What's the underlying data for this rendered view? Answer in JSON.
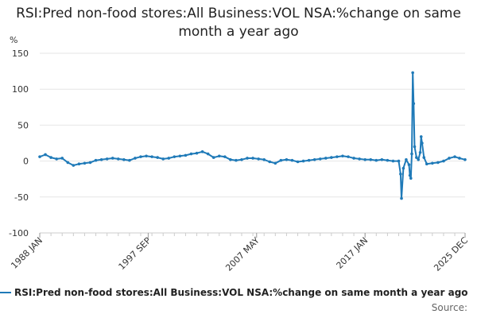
{
  "title": "RSI:Pred non-food stores:All Business:VOL NSA:%change on same month a year ago",
  "source_label": "Source:",
  "colors": {
    "series": "#1f7ab8",
    "grid": "#e6e6e6",
    "axis": "#cccccc"
  },
  "chart_data": {
    "type": "line",
    "title": "RSI:Pred non-food stores:All Business:VOL NSA:%change on same month a year ago",
    "ylabel": "%",
    "xlabel": "",
    "ylim": [
      -100,
      150
    ],
    "yticks": [
      150,
      100,
      50,
      0,
      -50,
      -100
    ],
    "xlim": [
      "1988-01",
      "2025-12"
    ],
    "xtick_labels": [
      {
        "x": "1988-01",
        "label": "1988 JAN"
      },
      {
        "x": "1997-09",
        "label": "1997 SEP"
      },
      {
        "x": "2007-05",
        "label": "2007 MAY"
      },
      {
        "x": "2017-01",
        "label": "2017 JAN"
      },
      {
        "x": "2025-12",
        "label": "2025 DEC"
      }
    ],
    "grid": true,
    "legend_position": "bottom",
    "series": [
      {
        "name": "RSI:Pred non-food stores:All Business:VOL NSA:%change on same month a year ago",
        "points": [
          [
            "1988-01",
            6
          ],
          [
            "1988-07",
            9
          ],
          [
            "1989-01",
            5
          ],
          [
            "1989-07",
            3
          ],
          [
            "1990-01",
            4
          ],
          [
            "1990-07",
            -2
          ],
          [
            "1991-01",
            -6
          ],
          [
            "1991-07",
            -4
          ],
          [
            "1992-01",
            -3
          ],
          [
            "1992-07",
            -2
          ],
          [
            "1993-01",
            1
          ],
          [
            "1993-07",
            2
          ],
          [
            "1994-01",
            3
          ],
          [
            "1994-07",
            4
          ],
          [
            "1995-01",
            3
          ],
          [
            "1995-07",
            2
          ],
          [
            "1996-01",
            1
          ],
          [
            "1996-07",
            4
          ],
          [
            "1997-01",
            6
          ],
          [
            "1997-07",
            7
          ],
          [
            "1998-01",
            6
          ],
          [
            "1998-07",
            5
          ],
          [
            "1999-01",
            3
          ],
          [
            "1999-07",
            4
          ],
          [
            "2000-01",
            6
          ],
          [
            "2000-07",
            7
          ],
          [
            "2001-01",
            8
          ],
          [
            "2001-07",
            10
          ],
          [
            "2002-01",
            11
          ],
          [
            "2002-07",
            13
          ],
          [
            "2003-01",
            10
          ],
          [
            "2003-07",
            5
          ],
          [
            "2004-01",
            7
          ],
          [
            "2004-07",
            6
          ],
          [
            "2005-01",
            2
          ],
          [
            "2005-07",
            1
          ],
          [
            "2006-01",
            2
          ],
          [
            "2006-07",
            4
          ],
          [
            "2007-01",
            4
          ],
          [
            "2007-07",
            3
          ],
          [
            "2008-01",
            2
          ],
          [
            "2008-07",
            -1
          ],
          [
            "2009-01",
            -3
          ],
          [
            "2009-07",
            1
          ],
          [
            "2010-01",
            2
          ],
          [
            "2010-07",
            1
          ],
          [
            "2011-01",
            -1
          ],
          [
            "2011-07",
            0
          ],
          [
            "2012-01",
            1
          ],
          [
            "2012-07",
            2
          ],
          [
            "2013-01",
            3
          ],
          [
            "2013-07",
            4
          ],
          [
            "2014-01",
            5
          ],
          [
            "2014-07",
            6
          ],
          [
            "2015-01",
            7
          ],
          [
            "2015-07",
            6
          ],
          [
            "2016-01",
            4
          ],
          [
            "2016-07",
            3
          ],
          [
            "2017-01",
            2
          ],
          [
            "2017-07",
            2
          ],
          [
            "2018-01",
            1
          ],
          [
            "2018-07",
            2
          ],
          [
            "2019-01",
            1
          ],
          [
            "2019-07",
            0
          ],
          [
            "2020-01",
            0
          ],
          [
            "2020-03",
            -18
          ],
          [
            "2020-04",
            -52
          ],
          [
            "2020-06",
            -10
          ],
          [
            "2020-09",
            2
          ],
          [
            "2020-12",
            -5
          ],
          [
            "2021-01",
            -20
          ],
          [
            "2021-02",
            -24
          ],
          [
            "2021-03",
            10
          ],
          [
            "2021-04",
            123
          ],
          [
            "2021-05",
            80
          ],
          [
            "2021-06",
            20
          ],
          [
            "2021-08",
            5
          ],
          [
            "2021-10",
            2
          ],
          [
            "2021-12",
            12
          ],
          [
            "2022-01",
            34
          ],
          [
            "2022-02",
            25
          ],
          [
            "2022-04",
            5
          ],
          [
            "2022-07",
            -4
          ],
          [
            "2023-01",
            -3
          ],
          [
            "2023-07",
            -2
          ],
          [
            "2024-01",
            0
          ],
          [
            "2024-07",
            4
          ],
          [
            "2025-01",
            6
          ],
          [
            "2025-06",
            4
          ],
          [
            "2025-12",
            2
          ]
        ]
      }
    ]
  }
}
